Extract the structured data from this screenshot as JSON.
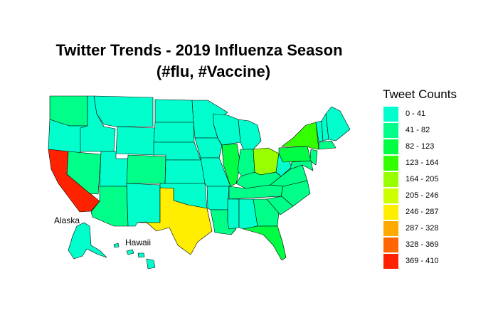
{
  "title": {
    "line1": "Twitter Trends - 2019 Influenza Season",
    "line2": "(#flu, #Vaccine)"
  },
  "legend": {
    "title": "Tweet Counts",
    "items": [
      {
        "label": "0 - 41",
        "color": "#00ffcc"
      },
      {
        "label": "41 - 82",
        "color": "#00ff88"
      },
      {
        "label": "82 - 123",
        "color": "#00ff44"
      },
      {
        "label": "123 - 164",
        "color": "#33ff00"
      },
      {
        "label": "164 - 205",
        "color": "#99ff00"
      },
      {
        "label": "205 - 246",
        "color": "#ccff00"
      },
      {
        "label": "246 - 287",
        "color": "#ffee00"
      },
      {
        "label": "287 - 328",
        "color": "#ffaa00"
      },
      {
        "label": "328 - 369",
        "color": "#ff6600"
      },
      {
        "label": "369 - 410",
        "color": "#ff2200"
      }
    ]
  },
  "map_labels": {
    "alaska": "Alaska",
    "hawaii": "Hawaii"
  },
  "state_bins": {
    "washington": 1,
    "oregon": 0,
    "california": 9,
    "nevada": 1,
    "idaho": 0,
    "montana": 0,
    "wyoming": 0,
    "utah": 0,
    "arizona": 1,
    "colorado": 1,
    "new-mexico": 0,
    "north-dakota": 0,
    "south-dakota": 0,
    "nebraska": 0,
    "kansas": 0,
    "oklahoma": 0,
    "texas": 6,
    "minnesota": 0,
    "iowa": 0,
    "missouri": 0,
    "arkansas": 0,
    "louisiana": 1,
    "wisconsin": 0,
    "illinois": 2,
    "michigan": 0,
    "indiana": 1,
    "ohio": 4,
    "kentucky": 1,
    "tennessee": 1,
    "mississippi": 0,
    "alabama": 0,
    "georgia": 1,
    "florida": 2,
    "south-carolina": 1,
    "north-carolina": 1,
    "virginia": 1,
    "west-virginia": 0,
    "pennsylvania": 2,
    "new-york": 3,
    "new-jersey": 1,
    "maine": 0,
    "vermont": 0,
    "new-hampshire": 0,
    "massachusetts": 1,
    "maryland": 1,
    "alaska": 0,
    "hawaii": 0
  }
}
